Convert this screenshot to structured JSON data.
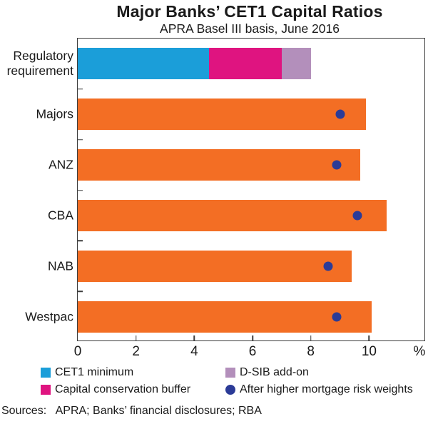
{
  "header": {
    "title": "Major Banks’ CET1 Capital Ratios",
    "subtitle": "APRA Basel III basis, June 2016"
  },
  "footer": {
    "sources": "Sources:   APRA; Banks’ financial disclosures; RBA"
  },
  "colors": {
    "cet1_minimum": "#1B9ED9",
    "capital_conservation_buffer": "#DF1480",
    "dsib_addon": "#B38FBB",
    "bank_bar_orange": "#F36E24",
    "mortgage_dot_blue": "#2B3B97",
    "axis_frame": "#3d3d3d"
  },
  "chart_data": {
    "type": "bar",
    "orientation": "horizontal",
    "title": "Major Banks’ CET1 Capital Ratios",
    "subtitle": "APRA Basel III basis, June 2016",
    "grid": false,
    "legend_position": "bottom",
    "x_axis": {
      "ticks": [
        0,
        2,
        4,
        6,
        8,
        10
      ],
      "max": 11.9,
      "unit_label": "%"
    },
    "categories": [
      "Regulatory requirement",
      "Majors",
      "ANZ",
      "CBA",
      "NAB",
      "Westpac"
    ],
    "dot_series": "After higher mortgage risk weights",
    "dot_color": "#2B3B97",
    "rows": [
      {
        "label_lines": [
          "Regulatory",
          "requirement"
        ],
        "total": 8.0,
        "dot": null,
        "segments": [
          {
            "series": "CET1 minimum",
            "value": 4.5,
            "color": "#1B9ED9"
          },
          {
            "series": "Capital conservation buffer",
            "value": 2.5,
            "color": "#DF1480"
          },
          {
            "series": "D-SIB add-on",
            "value": 1.0,
            "color": "#B38FBB"
          }
        ]
      },
      {
        "label_lines": [
          "Majors"
        ],
        "total": 9.9,
        "dot": 9.0,
        "segments": [
          {
            "series": "CET1 capital ratio",
            "value": 9.9,
            "color": "#F36E24"
          }
        ]
      },
      {
        "label_lines": [
          "ANZ"
        ],
        "total": 9.7,
        "dot": 8.9,
        "segments": [
          {
            "series": "CET1 capital ratio",
            "value": 9.7,
            "color": "#F36E24"
          }
        ]
      },
      {
        "label_lines": [
          "CBA"
        ],
        "total": 10.6,
        "dot": 9.6,
        "segments": [
          {
            "series": "CET1 capital ratio",
            "value": 10.6,
            "color": "#F36E24"
          }
        ]
      },
      {
        "label_lines": [
          "NAB"
        ],
        "total": 9.4,
        "dot": 8.6,
        "segments": [
          {
            "series": "CET1 capital ratio",
            "value": 9.4,
            "color": "#F36E24"
          }
        ]
      },
      {
        "label_lines": [
          "Westpac"
        ],
        "total": 10.1,
        "dot": 8.9,
        "segments": [
          {
            "series": "CET1 capital ratio",
            "value": 10.1,
            "color": "#F36E24"
          }
        ]
      }
    ],
    "legend": [
      {
        "label": "CET1 minimum",
        "marker": "square",
        "color": "#1B9ED9"
      },
      {
        "label": "Capital conservation buffer",
        "marker": "square",
        "color": "#DF1480"
      },
      {
        "label": "D-SIB add-on",
        "marker": "square",
        "color": "#B38FBB"
      },
      {
        "label": "After higher mortgage risk weights",
        "marker": "circle",
        "color": "#2B3B97"
      }
    ]
  }
}
